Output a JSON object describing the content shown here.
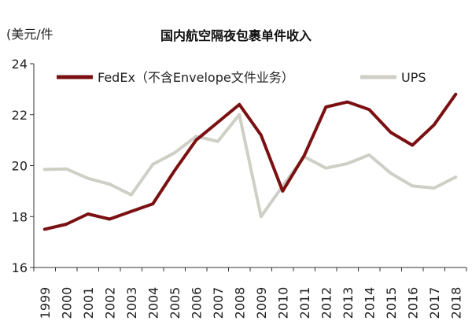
{
  "chart_data": {
    "type": "line",
    "title": "国内航空隔夜包裹单件收入",
    "ylabel": "(美元/件",
    "xlabel": "",
    "categories": [
      "1999",
      "2000",
      "2001",
      "2002",
      "2003",
      "2004",
      "2005",
      "2006",
      "2007",
      "2008",
      "2009",
      "2010",
      "2011",
      "2012",
      "2013",
      "2014",
      "2015",
      "2016",
      "2017",
      "2018"
    ],
    "ylim": [
      16,
      24
    ],
    "yticks": [
      16,
      18,
      20,
      22,
      24
    ],
    "grid": false,
    "legend_position": "top",
    "series": [
      {
        "name": "FedEx（不含Envelope文件业务）",
        "color": "#7a1012",
        "values": [
          17.5,
          17.7,
          18.1,
          17.9,
          18.2,
          18.5,
          19.8,
          21.0,
          21.7,
          22.4,
          21.2,
          19.0,
          20.4,
          22.3,
          22.5,
          22.2,
          21.3,
          20.8,
          21.6,
          22.8
        ]
      },
      {
        "name": "UPS",
        "color": "#cfcfc6",
        "values": [
          19.85,
          19.87,
          19.5,
          19.27,
          18.85,
          20.05,
          20.5,
          21.15,
          20.95,
          22.0,
          18.0,
          19.2,
          20.35,
          19.9,
          20.08,
          20.42,
          19.7,
          19.2,
          19.12,
          19.55
        ]
      }
    ]
  }
}
